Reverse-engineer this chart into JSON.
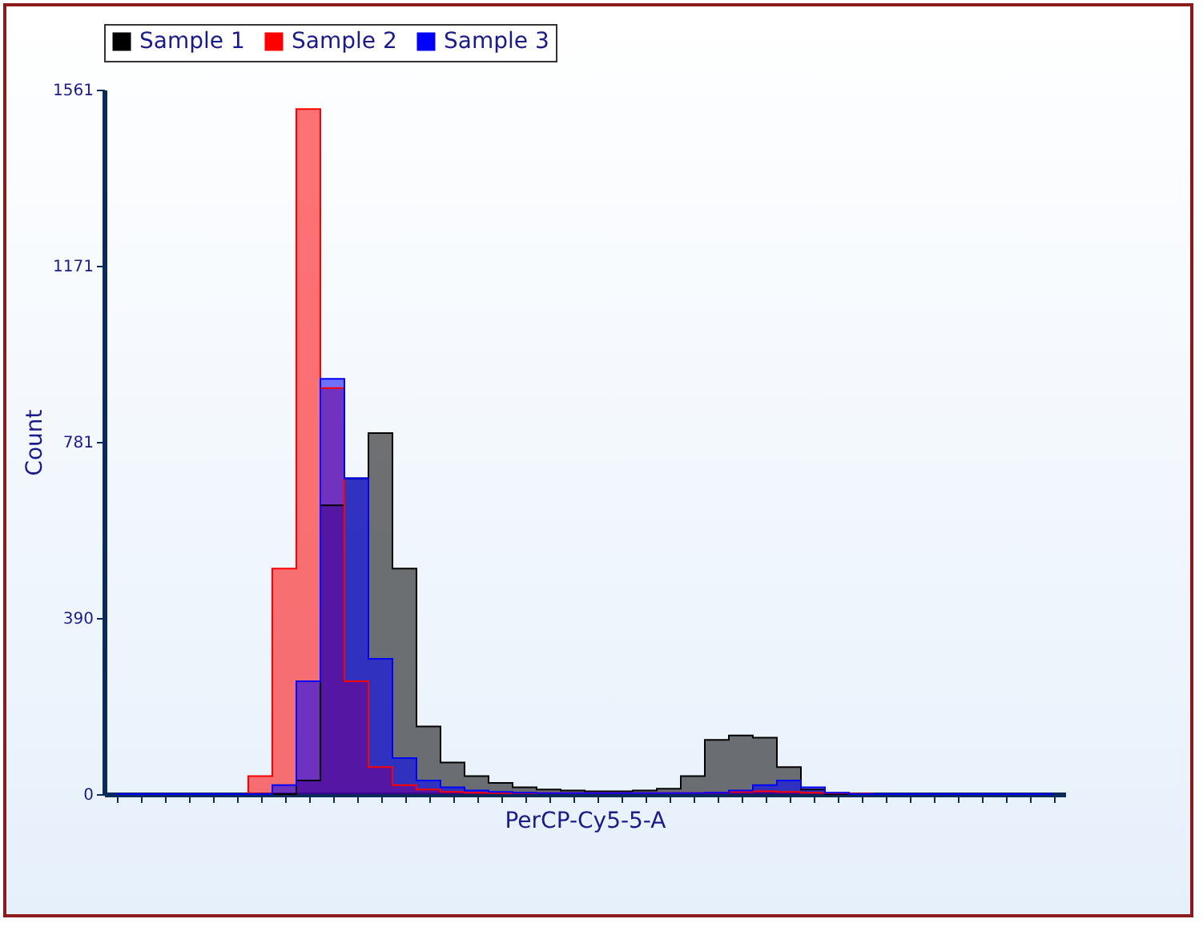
{
  "chart_data": {
    "type": "area",
    "xlabel": "PerCP-Cy5-5-A",
    "ylabel": "Count",
    "categories": [
      null,
      null,
      null,
      null,
      null,
      null,
      null,
      null,
      null,
      null,
      null,
      null,
      null,
      null,
      null,
      null,
      null,
      null,
      null,
      null,
      null,
      null,
      null,
      null,
      null,
      null,
      null,
      null,
      null,
      null,
      null,
      null,
      null,
      null,
      null,
      null,
      null,
      null,
      null,
      null
    ],
    "series": [
      {
        "name": "Sample 1",
        "color": "#000000",
        "values": [
          0,
          0,
          0,
          0,
          0,
          0,
          0,
          0,
          30,
          640,
          700,
          800,
          500,
          150,
          70,
          40,
          25,
          15,
          10,
          8,
          6,
          6,
          8,
          12,
          40,
          120,
          130,
          125,
          60,
          10,
          0,
          0,
          0,
          0,
          0,
          0,
          0,
          0,
          0,
          0
        ]
      },
      {
        "name": "Sample 2",
        "color": "#ff0000",
        "values": [
          0,
          0,
          0,
          0,
          0,
          0,
          40,
          500,
          1518,
          900,
          250,
          60,
          20,
          10,
          5,
          3,
          2,
          2,
          2,
          2,
          2,
          2,
          2,
          2,
          2,
          3,
          5,
          6,
          5,
          3,
          2,
          1,
          0,
          0,
          0,
          0,
          0,
          0,
          0,
          0
        ]
      },
      {
        "name": "Sample 3",
        "color": "#0000ff",
        "values": [
          0,
          0,
          0,
          0,
          0,
          0,
          0,
          20,
          250,
          920,
          700,
          300,
          80,
          30,
          15,
          8,
          5,
          3,
          2,
          2,
          2,
          2,
          2,
          2,
          2,
          3,
          8,
          20,
          30,
          15,
          3,
          0,
          0,
          0,
          0,
          0,
          0,
          0,
          0,
          0
        ]
      }
    ],
    "ylim": [
      0,
      1561
    ],
    "yticks": [
      0,
      390,
      781,
      1171,
      1561
    ],
    "legend": "top",
    "tick_labels": "y"
  }
}
